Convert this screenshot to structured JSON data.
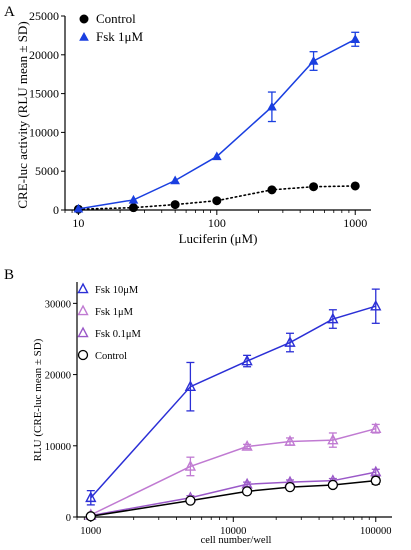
{
  "chart_data": [
    {
      "panel": "A",
      "type": "line",
      "xscale": "log",
      "xlabel": "Luciferin (μM)",
      "ylabel": "CRE-luc activity (RLU mean ± SD)",
      "xlim": [
        8,
        1300
      ],
      "ylim": [
        0,
        25000
      ],
      "xticks": [
        10,
        100,
        1000
      ],
      "xtick_labels": [
        "10",
        "100",
        "1000"
      ],
      "yticks": [
        0,
        5000,
        10000,
        15000,
        20000,
        25000
      ],
      "ytick_labels": [
        "0",
        "5000",
        "10000",
        "15000",
        "20000",
        "25000"
      ],
      "grid": false,
      "legend_position": "top-left",
      "series": [
        {
          "name": "Control",
          "color": "#000000",
          "marker": "circle",
          "line": "dotted",
          "x": [
            10,
            25,
            50,
            100,
            250,
            500,
            1000
          ],
          "y": [
            100,
            300,
            700,
            1200,
            2600,
            3000,
            3100
          ],
          "err": [
            0,
            0,
            0,
            0,
            0,
            0,
            0
          ]
        },
        {
          "name": "Fsk 1μM",
          "color": "#1a3fe0",
          "marker": "triangle",
          "line": "solid",
          "x": [
            10,
            25,
            50,
            100,
            250,
            500,
            1000
          ],
          "y": [
            150,
            1300,
            3800,
            6900,
            13300,
            19200,
            22000
          ],
          "err": [
            0,
            0,
            0,
            0,
            1900,
            1200,
            900
          ]
        }
      ]
    },
    {
      "panel": "B",
      "type": "line",
      "xscale": "log",
      "xlabel": "cell number/well",
      "ylabel": "RLU (CRE-luc mean ± SD)",
      "xlim": [
        800,
        130000
      ],
      "ylim": [
        0,
        33000
      ],
      "xticks": [
        1000,
        10000,
        100000
      ],
      "xtick_labels": [
        "1000",
        "10000",
        "100000"
      ],
      "yticks": [
        0,
        10000,
        20000,
        30000
      ],
      "ytick_labels": [
        "0",
        "10000",
        "20000",
        "30000"
      ],
      "grid": false,
      "legend_position": "top-left",
      "series": [
        {
          "name": "Fsk 10μM",
          "color": "#2b2fd6",
          "marker": "triangle-open",
          "x": [
            1000,
            5000,
            12500,
            25000,
            50000,
            100000
          ],
          "y": [
            2700,
            18300,
            21900,
            24500,
            27800,
            29600
          ],
          "err": [
            1000,
            3400,
            800,
            1300,
            1300,
            2400
          ]
        },
        {
          "name": "Fsk 1μM",
          "color": "#c07ad2",
          "marker": "triangle-open",
          "x": [
            1000,
            5000,
            12500,
            25000,
            50000,
            100000
          ],
          "y": [
            300,
            7100,
            9900,
            10600,
            10800,
            12400
          ],
          "err": [
            0,
            1300,
            300,
            500,
            1000,
            600
          ]
        },
        {
          "name": "Fsk 0.1μM",
          "color": "#9a58c8",
          "marker": "triangle-open",
          "x": [
            1000,
            5000,
            12500,
            25000,
            50000,
            100000
          ],
          "y": [
            200,
            2700,
            4600,
            4900,
            5100,
            6300
          ],
          "err": [
            0,
            300,
            300,
            300,
            300,
            400
          ]
        },
        {
          "name": "Control",
          "color": "#000000",
          "marker": "circle-open",
          "x": [
            1000,
            5000,
            12500,
            25000,
            50000,
            100000
          ],
          "y": [
            100,
            2300,
            3600,
            4200,
            4500,
            5100
          ],
          "err": [
            0,
            200,
            300,
            300,
            300,
            500
          ]
        }
      ]
    }
  ],
  "panels": [
    {
      "label": "A"
    },
    {
      "label": "B"
    }
  ]
}
